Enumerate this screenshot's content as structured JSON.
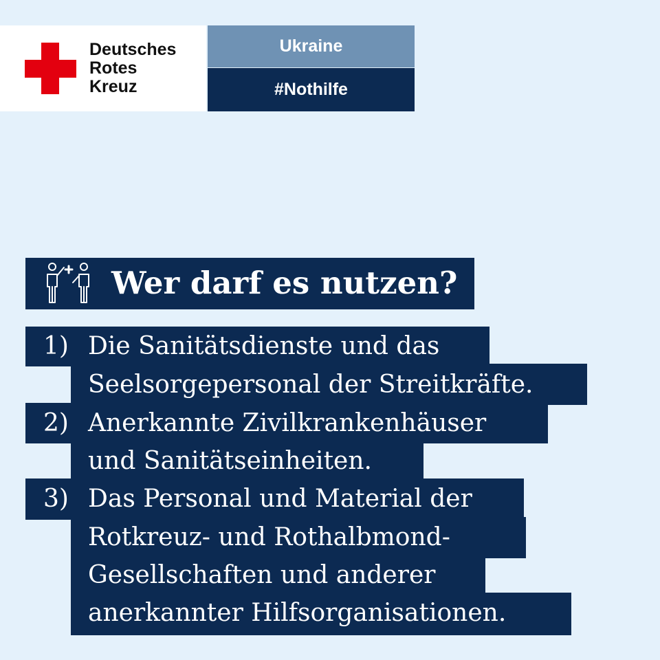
{
  "header": {
    "org_name_lines": [
      "Deutsches",
      "Rotes",
      "Kreuz"
    ],
    "tag_top": "Ukraine",
    "tag_bottom": "#Nothilfe",
    "colors": {
      "red_cross": "#e3000f",
      "navy": "#0c2a52",
      "steel_blue": "#6f92b4",
      "background": "#e4f1fb"
    }
  },
  "heading": {
    "icon": "people-helper-icon",
    "text": "Wer darf es nutzen?"
  },
  "items": [
    {
      "number": "1)",
      "lines": [
        "Die Sanitätsdienste und das",
        "Seelsorgepersonal der Streitkräfte."
      ]
    },
    {
      "number": "2)",
      "lines": [
        "Anerkannte Zivilkrankenhäuser",
        "und  Sanitätseinheiten."
      ]
    },
    {
      "number": "3)",
      "lines": [
        "Das Personal und Material der",
        "Rotkreuz- und Rothalbmond-",
        "Gesellschaften und anderer",
        "anerkannter Hilfsorganisationen."
      ]
    }
  ]
}
